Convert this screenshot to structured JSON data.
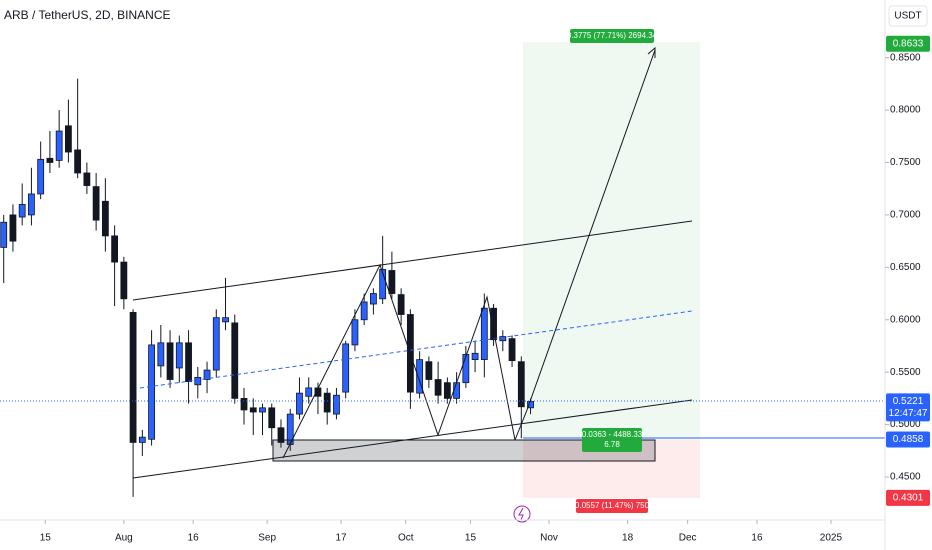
{
  "chart_data": {
    "type": "candlestick",
    "title": "ARB / TetherUS, 2D, BINANCE",
    "currency": "USDT",
    "x": [
      5,
      7,
      9,
      11,
      13,
      15,
      17,
      19,
      21,
      23,
      25,
      27,
      29,
      31,
      33,
      35,
      37,
      39,
      41,
      43,
      45,
      47,
      49,
      51,
      53,
      55,
      57,
      59,
      61,
      63,
      65,
      67,
      69,
      71,
      73,
      75,
      77,
      79,
      81,
      83,
      85,
      87,
      89,
      91,
      93,
      95,
      97,
      99,
      101,
      103,
      105,
      107,
      109,
      111,
      113,
      115,
      117,
      119
    ],
    "open": [
      0.669,
      0.7,
      0.698,
      0.7,
      0.72,
      0.754,
      0.752,
      0.785,
      0.762,
      0.74,
      0.727,
      0.713,
      0.68,
      0.655,
      0.607,
      0.483,
      0.486,
      0.556,
      0.578,
      0.554,
      0.578,
      0.538,
      0.543,
      0.552,
      0.598,
      0.597,
      0.525,
      0.516,
      0.512,
      0.516,
      0.497,
      0.481,
      0.51,
      0.527,
      0.535,
      0.53,
      0.51,
      0.531,
      0.576,
      0.6,
      0.615,
      0.62,
      0.647,
      0.624,
      0.605,
      0.53,
      0.56,
      0.543,
      0.54,
      0.525,
      0.54,
      0.562,
      0.562,
      0.611,
      0.58,
      0.582,
      0.56,
      0.516
    ],
    "high": [
      0.7,
      0.71,
      0.73,
      0.745,
      0.77,
      0.78,
      0.8,
      0.81,
      0.83,
      0.75,
      0.74,
      0.735,
      0.69,
      0.66,
      0.61,
      0.495,
      0.59,
      0.595,
      0.59,
      0.585,
      0.59,
      0.555,
      0.56,
      0.61,
      0.64,
      0.605,
      0.535,
      0.525,
      0.52,
      0.52,
      0.505,
      0.515,
      0.545,
      0.545,
      0.54,
      0.535,
      0.535,
      0.58,
      0.61,
      0.625,
      0.63,
      0.68,
      0.665,
      0.63,
      0.61,
      0.57,
      0.565,
      0.56,
      0.545,
      0.55,
      0.575,
      0.58,
      0.625,
      0.615,
      0.59,
      0.585,
      0.565,
      0.525
    ],
    "low": [
      0.635,
      0.665,
      0.69,
      0.69,
      0.715,
      0.74,
      0.745,
      0.75,
      0.735,
      0.72,
      0.685,
      0.665,
      0.613,
      0.61,
      0.431,
      0.47,
      0.48,
      0.545,
      0.535,
      0.54,
      0.52,
      0.525,
      0.53,
      0.545,
      0.59,
      0.52,
      0.5,
      0.49,
      0.49,
      0.48,
      0.478,
      0.475,
      0.505,
      0.52,
      0.51,
      0.5,
      0.505,
      0.525,
      0.57,
      0.595,
      0.605,
      0.615,
      0.62,
      0.595,
      0.515,
      0.525,
      0.535,
      0.52,
      0.52,
      0.52,
      0.535,
      0.55,
      0.545,
      0.575,
      0.57,
      0.555,
      0.487,
      0.51
    ],
    "close": [
      0.693,
      0.675,
      0.71,
      0.72,
      0.753,
      0.75,
      0.78,
      0.76,
      0.74,
      0.728,
      0.695,
      0.68,
      0.655,
      0.62,
      0.483,
      0.488,
      0.576,
      0.578,
      0.543,
      0.578,
      0.541,
      0.545,
      0.552,
      0.602,
      0.602,
      0.525,
      0.514,
      0.512,
      0.516,
      0.497,
      0.483,
      0.51,
      0.53,
      0.535,
      0.527,
      0.512,
      0.528,
      0.577,
      0.6,
      0.617,
      0.625,
      0.648,
      0.625,
      0.605,
      0.531,
      0.562,
      0.543,
      0.528,
      0.525,
      0.54,
      0.567,
      0.568,
      0.611,
      0.581,
      0.584,
      0.561,
      0.517,
      0.5221
    ],
    "up_color": "#2962ff",
    "down_color": "#131722",
    "xlim": [
      4.2,
      195.7
    ],
    "xticks": [
      {
        "value": 14,
        "label": "15"
      },
      {
        "value": 31,
        "label": "Aug"
      },
      {
        "value": 46,
        "label": "16"
      },
      {
        "value": 62,
        "label": "Sep"
      },
      {
        "value": 78,
        "label": "17"
      },
      {
        "value": 92,
        "label": "Oct"
      },
      {
        "value": 106,
        "label": "15"
      },
      {
        "value": 123,
        "label": "Nov"
      },
      {
        "value": 140,
        "label": "18"
      },
      {
        "value": 153,
        "label": "Dec"
      },
      {
        "value": 168,
        "label": "16"
      },
      {
        "value": 184,
        "label": "2025"
      }
    ],
    "ylim": [
      0.409,
      0.905
    ],
    "yticks": [
      {
        "value": 0.45,
        "label": "0.4500"
      },
      {
        "value": 0.5,
        "label": "0.5000"
      },
      {
        "value": 0.55,
        "label": "0.5500"
      },
      {
        "value": 0.6,
        "label": "0.6000"
      },
      {
        "value": 0.65,
        "label": "0.6500"
      },
      {
        "value": 0.7,
        "label": "0.7000"
      },
      {
        "value": 0.75,
        "label": "0.7500"
      },
      {
        "value": 0.8,
        "label": "0.8000"
      },
      {
        "value": 0.85,
        "label": "0.8500"
      }
    ],
    "price_markers": [
      {
        "value": 0.8633,
        "label": "0.8633",
        "color": "#22ab3c"
      },
      {
        "value": 0.5221,
        "label": "0.5221",
        "color": "#2962ff",
        "countdown": "12:47:47"
      },
      {
        "value": 0.4858,
        "label": "0.4858",
        "color": "#2962ff"
      },
      {
        "value": 0.4301,
        "label": "0.4301",
        "color": "#f23645"
      }
    ],
    "annotations": {
      "target": "0.3775 (77.71%) 2694.34",
      "entry": "0.0363 - 4488.33",
      "ratio": "6.78",
      "stop": "0.0557 (11.47%) 750"
    }
  }
}
